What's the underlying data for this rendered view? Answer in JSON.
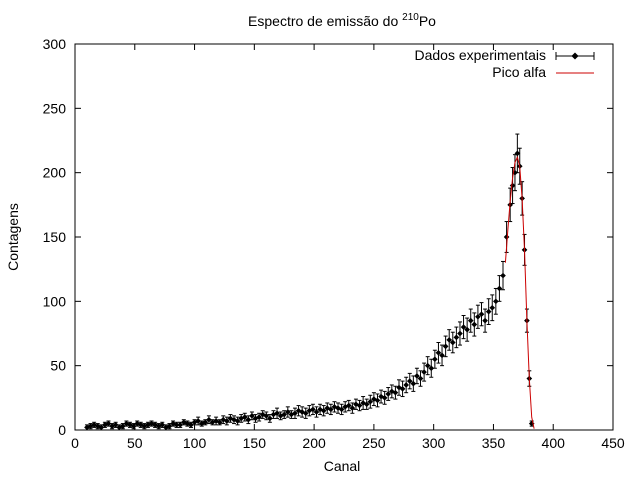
{
  "chart_data": {
    "type": "scatter",
    "title_main": "Espectro de emissão do ",
    "title_sup": "210",
    "title_tail": "Po",
    "xlabel": "Canal",
    "ylabel": "Contagens",
    "xlim": [
      0,
      450
    ],
    "ylim": [
      0,
      300
    ],
    "xticks": [
      "0",
      "50",
      "100",
      "150",
      "200",
      "250",
      "300",
      "350",
      "400",
      "450"
    ],
    "yticks": [
      "0",
      "50",
      "100",
      "150",
      "200",
      "250",
      "300"
    ],
    "grid": false,
    "legend_position": "top-right",
    "series": [
      {
        "name": "Dados experimentais",
        "style": "points-with-errorbars",
        "color": "#000000",
        "x": [
          10,
          13,
          16,
          19,
          22,
          25,
          28,
          31,
          34,
          37,
          40,
          43,
          46,
          49,
          52,
          55,
          58,
          61,
          64,
          67,
          70,
          73,
          76,
          79,
          82,
          85,
          88,
          91,
          94,
          97,
          100,
          103,
          106,
          109,
          112,
          115,
          118,
          121,
          124,
          127,
          130,
          133,
          136,
          139,
          142,
          145,
          148,
          151,
          154,
          157,
          160,
          163,
          166,
          169,
          172,
          175,
          178,
          181,
          184,
          187,
          190,
          193,
          196,
          199,
          202,
          205,
          208,
          211,
          214,
          217,
          220,
          223,
          226,
          229,
          232,
          235,
          238,
          241,
          244,
          247,
          250,
          253,
          256,
          259,
          262,
          265,
          268,
          271,
          274,
          277,
          280,
          283,
          286,
          289,
          292,
          295,
          298,
          301,
          304,
          307,
          310,
          313,
          316,
          319,
          322,
          325,
          328,
          331,
          334,
          337,
          340,
          343,
          346,
          349,
          352,
          355,
          358,
          361,
          364,
          366,
          368,
          370,
          372,
          374,
          376,
          378,
          380,
          382
        ],
        "y": [
          2,
          3,
          4,
          3,
          2,
          4,
          5,
          3,
          4,
          2,
          3,
          5,
          4,
          3,
          5,
          4,
          3,
          4,
          5,
          4,
          3,
          4,
          2,
          3,
          5,
          4,
          4,
          6,
          5,
          4,
          6,
          7,
          5,
          6,
          8,
          6,
          7,
          6,
          8,
          7,
          9,
          8,
          7,
          9,
          10,
          8,
          11,
          9,
          10,
          12,
          11,
          9,
          12,
          13,
          11,
          12,
          14,
          12,
          13,
          15,
          14,
          13,
          15,
          16,
          14,
          16,
          15,
          17,
          16,
          18,
          17,
          16,
          18,
          19,
          17,
          20,
          19,
          21,
          20,
          22,
          24,
          23,
          26,
          25,
          28,
          30,
          29,
          33,
          32,
          35,
          38,
          36,
          42,
          40,
          45,
          50,
          48,
          55,
          60,
          58,
          65,
          70,
          68,
          72,
          75,
          80,
          78,
          85,
          82,
          88,
          90,
          85,
          92,
          95,
          100,
          110,
          120,
          150,
          175,
          190,
          200,
          215,
          205,
          180,
          140,
          85,
          40,
          5
        ],
        "yerr": [
          2,
          2,
          2,
          2,
          2,
          2,
          2,
          2,
          2,
          2,
          2,
          2,
          2,
          2,
          2,
          2,
          2,
          2,
          2,
          2,
          2,
          2,
          2,
          2,
          2,
          2,
          2,
          2,
          2,
          2,
          2,
          3,
          2,
          2,
          3,
          2,
          3,
          2,
          3,
          3,
          3,
          3,
          3,
          3,
          3,
          3,
          3,
          3,
          3,
          3,
          3,
          3,
          3,
          4,
          3,
          3,
          4,
          3,
          4,
          4,
          4,
          4,
          4,
          4,
          4,
          4,
          4,
          4,
          4,
          4,
          4,
          4,
          4,
          4,
          4,
          4,
          4,
          5,
          4,
          5,
          5,
          5,
          5,
          5,
          5,
          5,
          5,
          6,
          6,
          6,
          6,
          6,
          6,
          6,
          7,
          7,
          7,
          7,
          8,
          8,
          8,
          8,
          8,
          8,
          9,
          9,
          9,
          9,
          9,
          9,
          9,
          9,
          10,
          10,
          10,
          10,
          11,
          12,
          13,
          14,
          14,
          15,
          14,
          13,
          12,
          9,
          6,
          2
        ]
      },
      {
        "name": "Pico alfa",
        "style": "line",
        "color": "#cc0000",
        "x": [
          360,
          362,
          364,
          366,
          368,
          370,
          372,
          374,
          376,
          378,
          380,
          382,
          384
        ],
        "y": [
          130,
          155,
          178,
          196,
          208,
          212,
          205,
          180,
          140,
          85,
          40,
          10,
          1
        ]
      }
    ]
  }
}
